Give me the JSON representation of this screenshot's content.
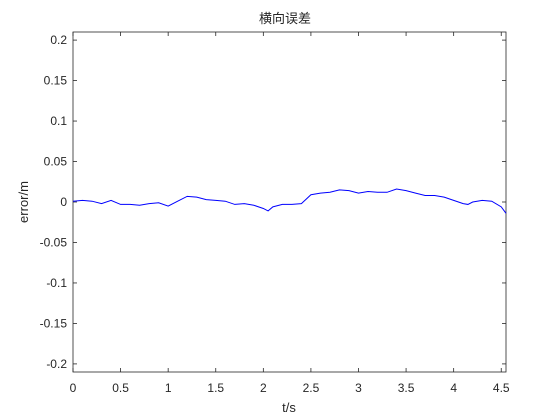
{
  "chart_data": {
    "type": "line",
    "title": "横向误差",
    "xlabel": "t/s",
    "ylabel": "error/m",
    "xlim": [
      0,
      4.55
    ],
    "ylim": [
      -0.21,
      0.21
    ],
    "xticks": [
      0,
      0.5,
      1,
      1.5,
      2,
      2.5,
      3,
      3.5,
      4,
      4.5
    ],
    "xtick_labels": [
      "0",
      "0.5",
      "1",
      "1.5",
      "2",
      "2.5",
      "3",
      "3.5",
      "4",
      "4.5"
    ],
    "yticks": [
      -0.2,
      -0.15,
      -0.1,
      -0.05,
      0,
      0.05,
      0.1,
      0.15,
      0.2
    ],
    "ytick_labels": [
      "-0.2",
      "-0.15",
      "-0.1",
      "-0.05",
      "0",
      "0.05",
      "0.1",
      "0.15",
      "0.2"
    ],
    "grid": false,
    "line_color": "#0000ff",
    "series": [
      {
        "x": [
          0,
          0.1,
          0.2,
          0.3,
          0.4,
          0.5,
          0.6,
          0.7,
          0.8,
          0.9,
          1.0,
          1.1,
          1.2,
          1.3,
          1.4,
          1.5,
          1.6,
          1.7,
          1.8,
          1.9,
          2.0,
          2.05,
          2.1,
          2.2,
          2.3,
          2.4,
          2.5,
          2.6,
          2.7,
          2.8,
          2.9,
          3.0,
          3.1,
          3.2,
          3.3,
          3.4,
          3.5,
          3.6,
          3.7,
          3.8,
          3.9,
          4.0,
          4.1,
          4.15,
          4.2,
          4.3,
          4.4,
          4.5,
          4.55
        ],
        "y": [
          0.001,
          0.002,
          0.001,
          -0.002,
          0.002,
          -0.003,
          -0.003,
          -0.004,
          -0.002,
          -0.001,
          -0.005,
          0.001,
          0.007,
          0.006,
          0.003,
          0.002,
          0.001,
          -0.003,
          -0.002,
          -0.004,
          -0.008,
          -0.011,
          -0.006,
          -0.003,
          -0.003,
          -0.002,
          0.009,
          0.011,
          0.012,
          0.015,
          0.014,
          0.011,
          0.013,
          0.012,
          0.012,
          0.016,
          0.014,
          0.011,
          0.008,
          0.008,
          0.006,
          0.002,
          -0.002,
          -0.003,
          0.0,
          0.002,
          0.001,
          -0.006,
          -0.014
        ]
      }
    ]
  }
}
